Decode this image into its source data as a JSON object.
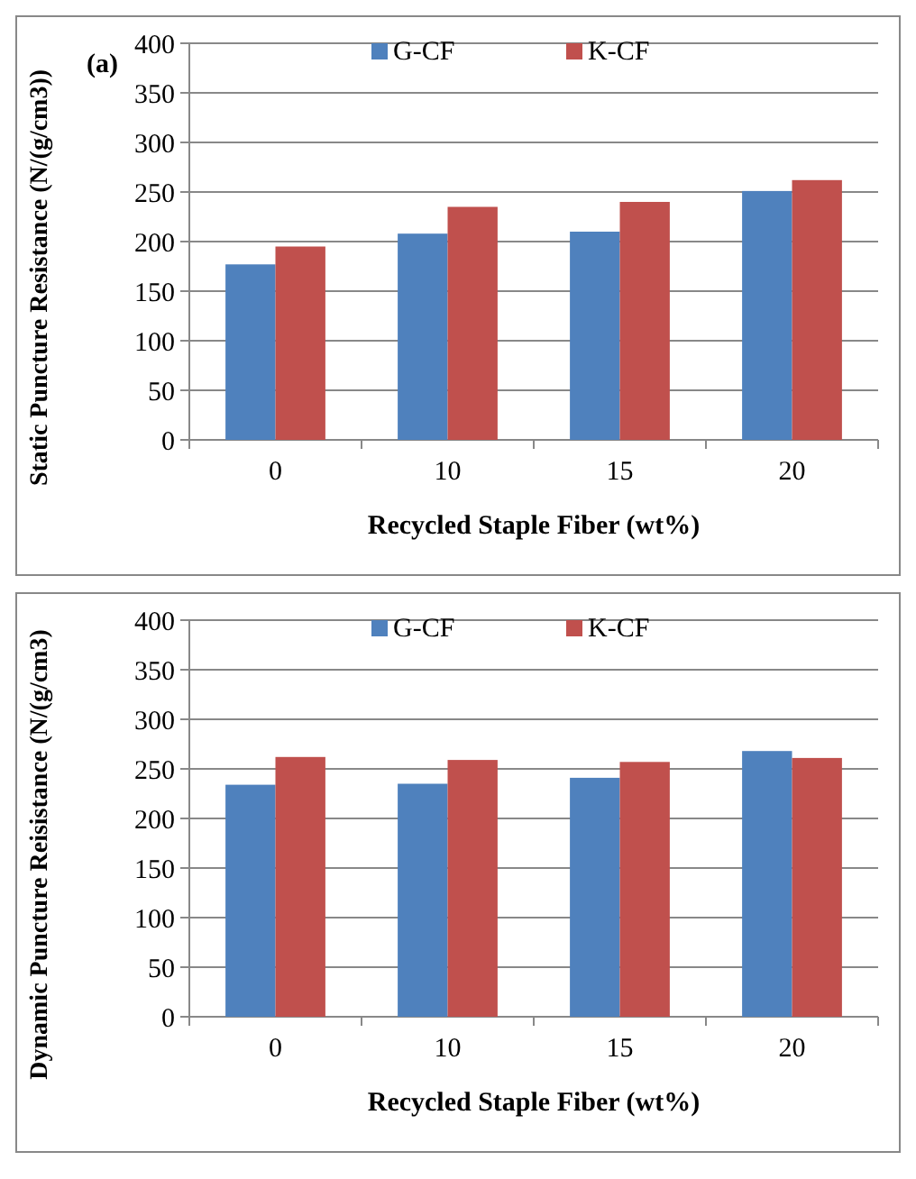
{
  "chart_data": [
    {
      "type": "bar",
      "annotations": [
        "(a)"
      ],
      "xlabel": "Recycled Staple Fiber (wt%)",
      "ylabel": "Static Puncture Resistance (N/(g/cm3))",
      "categories": [
        "0",
        "10",
        "15",
        "20"
      ],
      "series": [
        {
          "name": "G-CF",
          "color": "#4f81bd",
          "values": [
            177,
            208,
            210,
            251
          ]
        },
        {
          "name": "K-CF",
          "color": "#c0504d",
          "values": [
            195,
            235,
            240,
            262
          ]
        }
      ],
      "ylim": [
        0,
        400
      ],
      "yticks": [
        0,
        50,
        100,
        150,
        200,
        250,
        300,
        350,
        400
      ],
      "grid": "y",
      "legend": "top"
    },
    {
      "type": "bar",
      "xlabel": "Recycled Staple Fiber (wt%)",
      "ylabel": "Dynamic Puncture Reisistance (N/(g/cm3)",
      "categories": [
        "0",
        "10",
        "15",
        "20"
      ],
      "series": [
        {
          "name": "G-CF",
          "color": "#4f81bd",
          "values": [
            234,
            235,
            241,
            268
          ]
        },
        {
          "name": "K-CF",
          "color": "#c0504d",
          "values": [
            262,
            259,
            257,
            261
          ]
        }
      ],
      "ylim": [
        0,
        400
      ],
      "yticks": [
        0,
        50,
        100,
        150,
        200,
        250,
        300,
        350,
        400
      ],
      "grid": "y",
      "legend": "top"
    }
  ]
}
